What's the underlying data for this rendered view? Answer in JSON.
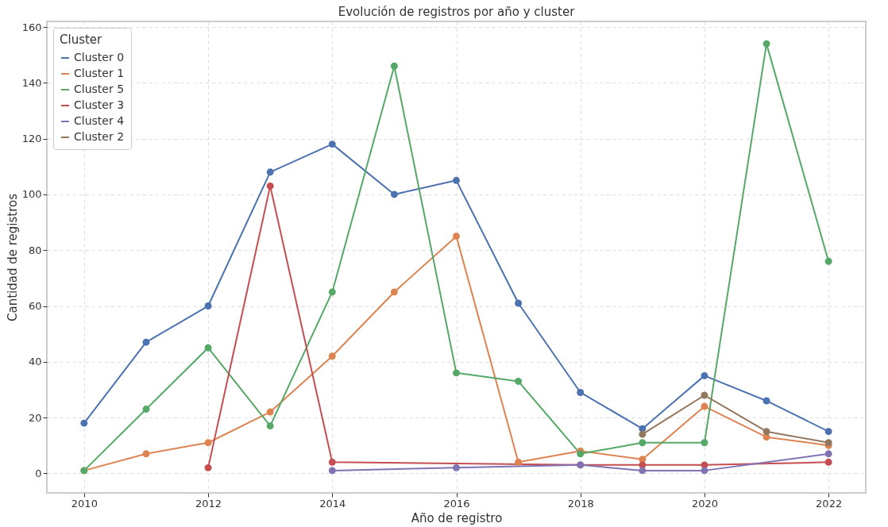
{
  "chart_data": {
    "type": "line",
    "title": "Evolución de registros por año y cluster",
    "xlabel": "Año de registro",
    "ylabel": "Cantidad de registros",
    "legend_title": "Cluster",
    "x": [
      2010,
      2011,
      2012,
      2013,
      2014,
      2015,
      2016,
      2017,
      2018,
      2019,
      2020,
      2021,
      2022
    ],
    "series": [
      {
        "name": "Cluster 0",
        "color": "#4c72b0",
        "values": [
          18,
          47,
          60,
          108,
          118,
          100,
          105,
          61,
          29,
          16,
          35,
          26,
          15
        ]
      },
      {
        "name": "Cluster 1",
        "color": "#dd8452",
        "values": [
          1,
          7,
          11,
          22,
          42,
          65,
          85,
          4,
          8,
          5,
          24,
          13,
          10
        ]
      },
      {
        "name": "Cluster 5",
        "color": "#55a868",
        "values": [
          1,
          23,
          45,
          17,
          65,
          146,
          36,
          33,
          7,
          11,
          11,
          154,
          76
        ]
      },
      {
        "name": "Cluster 3",
        "color": "#c44e52",
        "x": [
          2012,
          2013,
          2014,
          2018,
          2019,
          2020,
          2022
        ],
        "values": [
          2,
          103,
          4,
          3,
          3,
          3,
          4
        ]
      },
      {
        "name": "Cluster 4",
        "color": "#8172b3",
        "x": [
          2014,
          2016,
          2018,
          2019,
          2020,
          2022
        ],
        "values": [
          1,
          2,
          3,
          1,
          1,
          7
        ]
      },
      {
        "name": "Cluster 2",
        "color": "#937860",
        "x": [
          2019,
          2020,
          2021,
          2022
        ],
        "values": [
          14,
          28,
          15,
          11
        ]
      }
    ],
    "xlim": [
      2009.4,
      2022.6
    ],
    "xticks": [
      2010,
      2012,
      2014,
      2016,
      2018,
      2020,
      2022
    ],
    "ylim": [
      -7,
      162
    ],
    "yticks": [
      0,
      20,
      40,
      60,
      80,
      100,
      120,
      140,
      160
    ],
    "grid": true,
    "legend": "top left",
    "marker": "circle",
    "line_style": "solid"
  }
}
